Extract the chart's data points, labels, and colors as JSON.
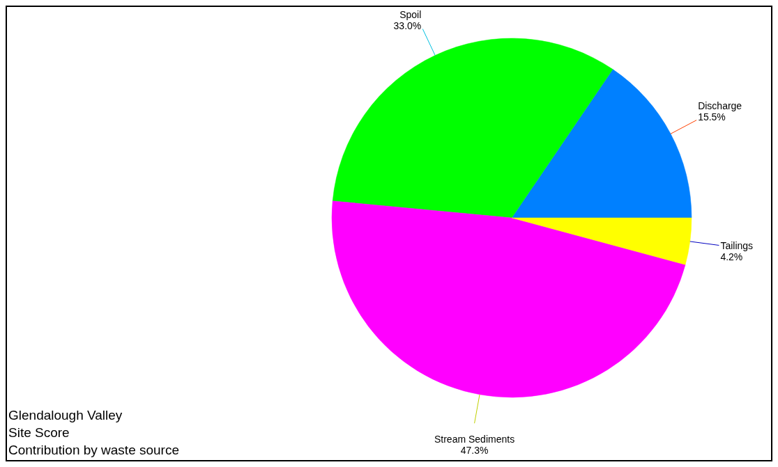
{
  "chart_data": {
    "type": "pie",
    "title": "Glendalough Valley",
    "subtitle": "Site Score",
    "annotations": [
      "Contribution by waste source"
    ],
    "categories": [
      "Discharge",
      "Spoil",
      "Stream Sediments",
      "Tailings"
    ],
    "values": [
      15.5,
      33.0,
      47.3,
      4.2
    ],
    "value_labels": [
      "15.5%",
      "33.0%",
      "47.3%",
      "4.2%"
    ],
    "colors": [
      "#0080ff",
      "#00ff00",
      "#ff00ff",
      "#ffff00"
    ]
  }
}
